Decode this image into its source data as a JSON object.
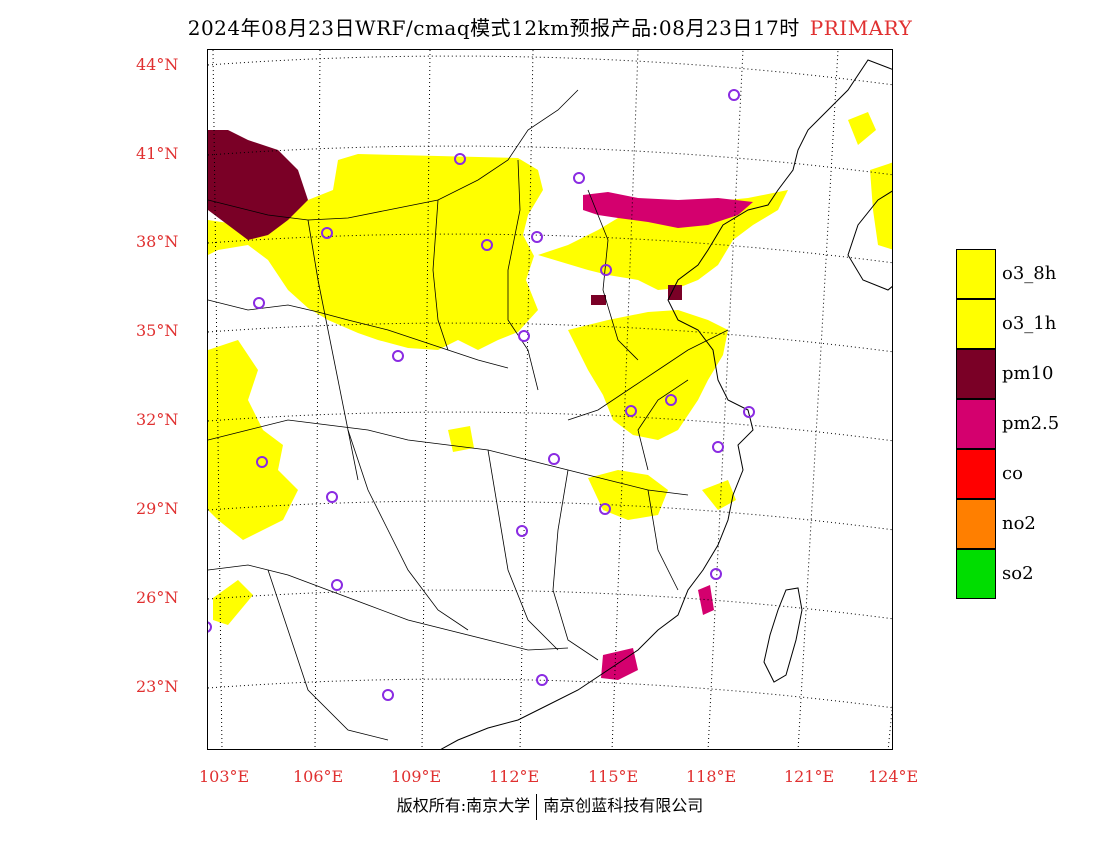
{
  "title": {
    "main": "2024年08月23日WRF/cmaq模式12km预报产品:08月23日17时",
    "tag": "PRIMARY"
  },
  "colors": {
    "axis_label": "#e03030",
    "o3_8h": "#ffff00",
    "o3_1h": "#ffff00",
    "pm10": "#7a0026",
    "pm2_5": "#d4006e",
    "co": "#ff0000",
    "no2": "#ff7f00",
    "so2": "#00dd00",
    "station_marker": "#8a2be2"
  },
  "axes": {
    "lat_labels": [
      "44°N",
      "41°N",
      "38°N",
      "35°N",
      "32°N",
      "29°N",
      "26°N",
      "23°N"
    ],
    "lon_labels": [
      "103°E",
      "106°E",
      "109°E",
      "112°E",
      "115°E",
      "118°E",
      "121°E",
      "124°E"
    ],
    "lat_range": [
      21,
      44.5
    ],
    "lon_range": [
      102.8,
      124
    ]
  },
  "legend": [
    {
      "key": "o3_8h",
      "label": "o3_8h"
    },
    {
      "key": "o3_1h",
      "label": "o3_1h"
    },
    {
      "key": "pm10",
      "label": "pm10"
    },
    {
      "key": "pm2_5",
      "label": "pm2.5"
    },
    {
      "key": "co",
      "label": "co"
    },
    {
      "key": "no2",
      "label": "no2"
    },
    {
      "key": "so2",
      "label": "so2"
    }
  ],
  "footer": {
    "left": "版权所有:南京大学",
    "right": "南京创蓝科技有限公司"
  }
}
